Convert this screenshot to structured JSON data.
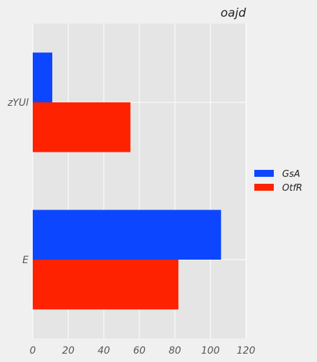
{
  "chart_data": {
    "type": "bar",
    "orientation": "horizontal",
    "title": "oajd",
    "categories": [
      "zYUl",
      "E"
    ],
    "series": [
      {
        "name": "GsA",
        "values": [
          11,
          106
        ],
        "color": "#0c47ff"
      },
      {
        "name": "OtfR",
        "values": [
          55,
          82
        ],
        "color": "#ff2200"
      }
    ],
    "xlim": [
      0,
      120
    ],
    "xticks": [
      0,
      20,
      40,
      60,
      80,
      100,
      120
    ],
    "grid": true,
    "legend_position": "right",
    "background": "#e5e5e5"
  }
}
